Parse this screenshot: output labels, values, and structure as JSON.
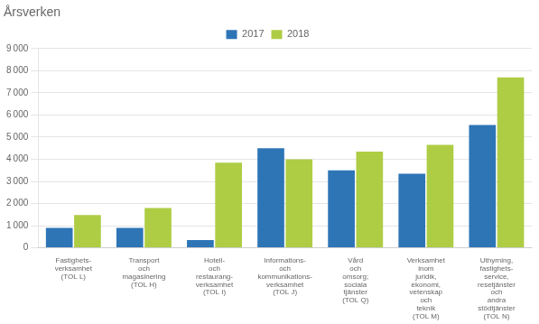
{
  "chart_data": {
    "type": "bar",
    "title": "Årsverken",
    "categories": [
      "Fastighets-\nverksamhet\n(TOL L)",
      "Transport\noch\nmagasinering\n(TOL H)",
      "Hotell-\noch\nrestaurang-\nverksamhet\n(TOL I)",
      "Informations-\noch\nkommunikations-\nverksamhet\n(TOL J)",
      "Vård\noch\nomsorg;\nsociala\ntjänster\n(TOL Q)",
      "Verksamhet\ninom\njuridik,\nekonomi,\nvetenskap\noch\nteknik\n(TOL M)",
      "Uthyrning,\nfastighets-\nservice,\nresetjänster\noch\nandra\nstödtjänster\n(TOL N)"
    ],
    "series": [
      {
        "name": "2017",
        "color": "#2E75B6",
        "values": [
          900,
          900,
          350,
          4500,
          3500,
          3350,
          5550
        ]
      },
      {
        "name": "2018",
        "color": "#AECD44",
        "values": [
          1480,
          1800,
          3850,
          4000,
          4350,
          4650,
          7700
        ]
      }
    ],
    "ylim": [
      0,
      9000
    ],
    "yticks": [
      0,
      {
        "value": 1000,
        "label": "1 000"
      },
      {
        "value": 2000,
        "label": "2 000"
      },
      {
        "value": 3000,
        "label": "3 000"
      },
      {
        "value": 4000,
        "label": "4 000"
      },
      {
        "value": 5000,
        "label": "5 000"
      },
      {
        "value": 6000,
        "label": "6 000"
      },
      {
        "value": 7000,
        "label": "7 000"
      },
      {
        "value": 8000,
        "label": "8 000"
      },
      {
        "value": 9000,
        "label": "9 000"
      }
    ],
    "grid": true,
    "legend": "top"
  }
}
